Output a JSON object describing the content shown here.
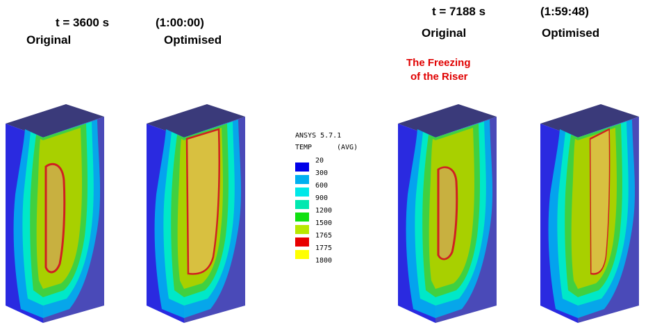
{
  "left": {
    "time": "t = 3600 s",
    "clock": "(1:00:00)",
    "labels": [
      "Original",
      "Optimised"
    ]
  },
  "right": {
    "time": "t = 7188 s",
    "clock": "(1:59:48)",
    "labels": [
      "Original",
      "Optimised"
    ]
  },
  "annotation": [
    "The Freezing",
    "of the Riser"
  ],
  "legend": {
    "software": "ANSYS 5.7.1",
    "quantity": "TEMP",
    "mode": "(AVG)",
    "levels": [
      20,
      300,
      600,
      900,
      1200,
      1500,
      1765,
      1775,
      1800
    ],
    "colors": [
      "#0000e8",
      "#00b0f0",
      "#00e8e8",
      "#00e8b0",
      "#10e010",
      "#b8e800",
      "#e80000",
      "#ffff00"
    ]
  }
}
